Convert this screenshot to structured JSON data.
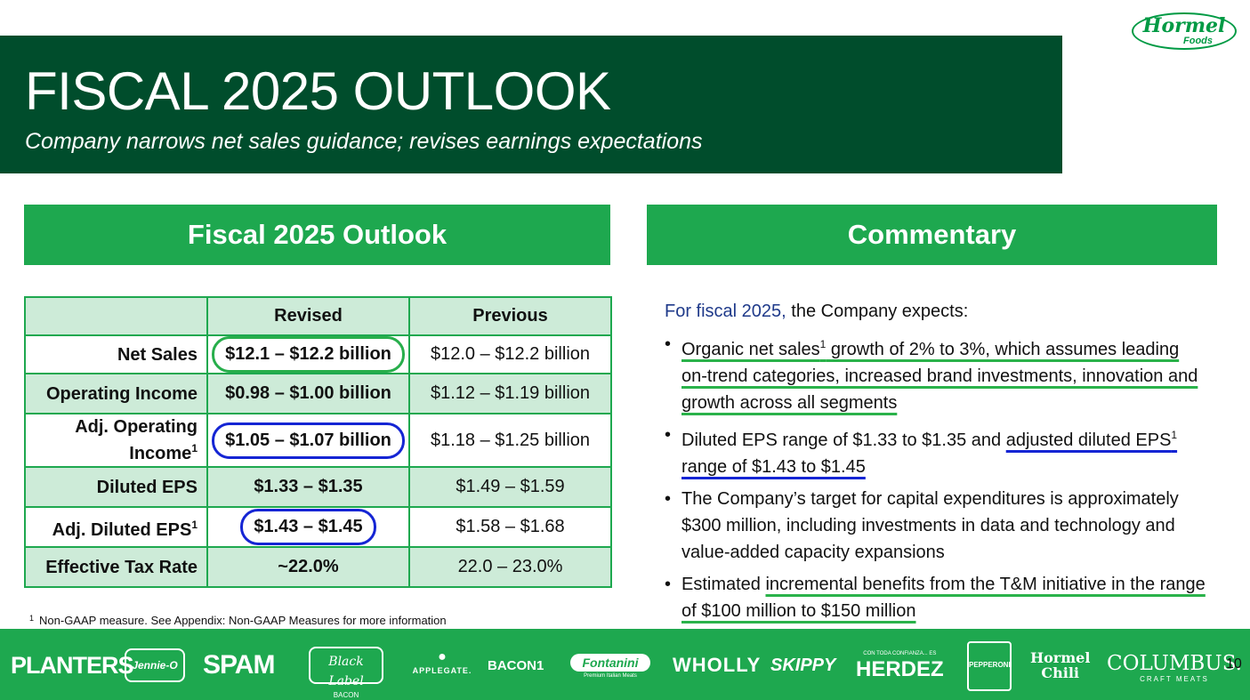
{
  "header": {
    "title": "FISCAL 2025 OUTLOOK",
    "subtitle": "Company narrows net sales guidance; revises earnings expectations"
  },
  "logo": {
    "text": "Hormel",
    "sub": "Foods",
    "icon": "hormel-foods-logo"
  },
  "outlook": {
    "heading": "Fiscal 2025 Outlook",
    "columns": [
      "",
      "Revised",
      "Previous"
    ],
    "rows": [
      {
        "label": "Net Sales",
        "revised_pre": "$12.1",
        "revised_post": "$12.2 billion",
        "previous": "$12.0 – $12.2 billion"
      },
      {
        "label": "Operating Income",
        "revised_pre": "$0.98",
        "revised_post": "$1.00 billion",
        "previous": "$1.12 – $1.19 billion"
      },
      {
        "label_line1": "Adj. Operating",
        "label_line2": "Income",
        "revised_pre": "$1.05",
        "revised_post": "$1.07 billion",
        "previous": "$1.18 – $1.25 billion"
      },
      {
        "label": "Diluted EPS",
        "revised_pre": "$1.33",
        "revised_post": "$1.35",
        "previous": "$1.49 – $1.59"
      },
      {
        "label": "Adj. Diluted EPS",
        "revised_pre": "$1.43",
        "revised_post": "$1.45",
        "previous": "$1.58 – $1.68"
      },
      {
        "label": "Effective Tax Rate",
        "revised": "~22.0%",
        "previous": "22.0 – 23.0%"
      }
    ],
    "dash": " – ",
    "footnote_mark": "1",
    "footnote": "Non-GAAP measure. See Appendix: Non-GAAP Measures for more information"
  },
  "commentary": {
    "heading": "Commentary",
    "intro_blue": "For fiscal 2025,",
    "intro_rest": " the Company expects:",
    "b1_a": "Organic net sales",
    "b1_b": " growth of 2% to 3%, which assumes leading on-trend categories, increased brand investments, innovation and growth across all segments",
    "b2_a": "Diluted EPS range of $1.33 to $1.35 and ",
    "b2_b": "adjusted diluted EPS",
    "b2_c": " range of $1.43 to $1.45",
    "b3": "The Company’s target for capital expenditures is approximately $300 million, including investments in data and technology and value-added capacity expansions",
    "b4_a": "Estimated ",
    "b4_b": "incremental benefits from the T&M initiative in the range of $100 million to $150 million",
    "sup": "1"
  },
  "brands": {
    "planters": "PLANTERS",
    "jennie_o": "Jennie-O",
    "spam": "SPAM",
    "black_label": "Black Label",
    "black_label_sub": "BACON",
    "applegate": "APPLEGATE.",
    "bacon1": "BACON1",
    "fontanini": "Fontanini",
    "fontanini_sub": "Premium Italian Meats",
    "wholly": "WHOLLY",
    "skippy": "SKIPPY",
    "herdez_top": "CON TODA CONFIANZA... ES",
    "herdez": "HERDEZ",
    "pepperoni": "PEPPERONI",
    "chili_1": "Hormel",
    "chili_2": "Chili",
    "columbus": "COLUMBUS.",
    "columbus_sub": "CRAFT MEATS"
  },
  "page_number": "10"
}
